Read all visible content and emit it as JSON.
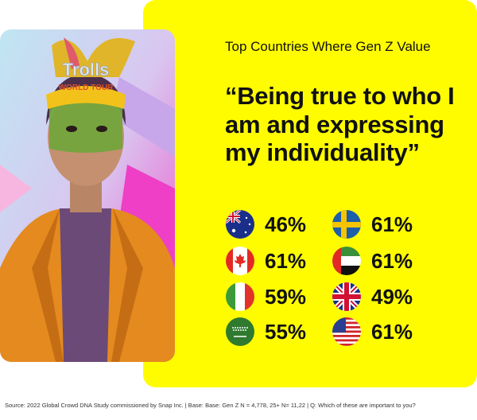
{
  "heading": "Top Countries Where Gen Z Value",
  "quote": "“Being true to who I am and expressing my individuality”",
  "photo": {
    "logo_text": "Trolls",
    "logo_sub": "World Tour"
  },
  "stats": [
    {
      "country": "Australia",
      "flag": "australia-flag",
      "value": "46%"
    },
    {
      "country": "Sweden",
      "flag": "sweden-flag",
      "value": "61%"
    },
    {
      "country": "Canada",
      "flag": "canada-flag",
      "value": "61%"
    },
    {
      "country": "United Arab Emirates",
      "flag": "uae-flag",
      "value": "61%"
    },
    {
      "country": "Italy",
      "flag": "italy-flag",
      "value": "59%"
    },
    {
      "country": "United Kingdom",
      "flag": "uk-flag",
      "value": "49%"
    },
    {
      "country": "Saudi Arabia",
      "flag": "saudi-arabia-flag",
      "value": "55%"
    },
    {
      "country": "United States",
      "flag": "usa-flag",
      "value": "61%"
    }
  ],
  "source": "Source: 2022 Global Crowd DNA Study commissioned by Snap Inc. | Base: Base: Gen Z N = 4,778, 25+ N= 11,22 | Q: Which of these are important to you?",
  "colors": {
    "accent": "#FFFC00",
    "text": "#111111"
  }
}
